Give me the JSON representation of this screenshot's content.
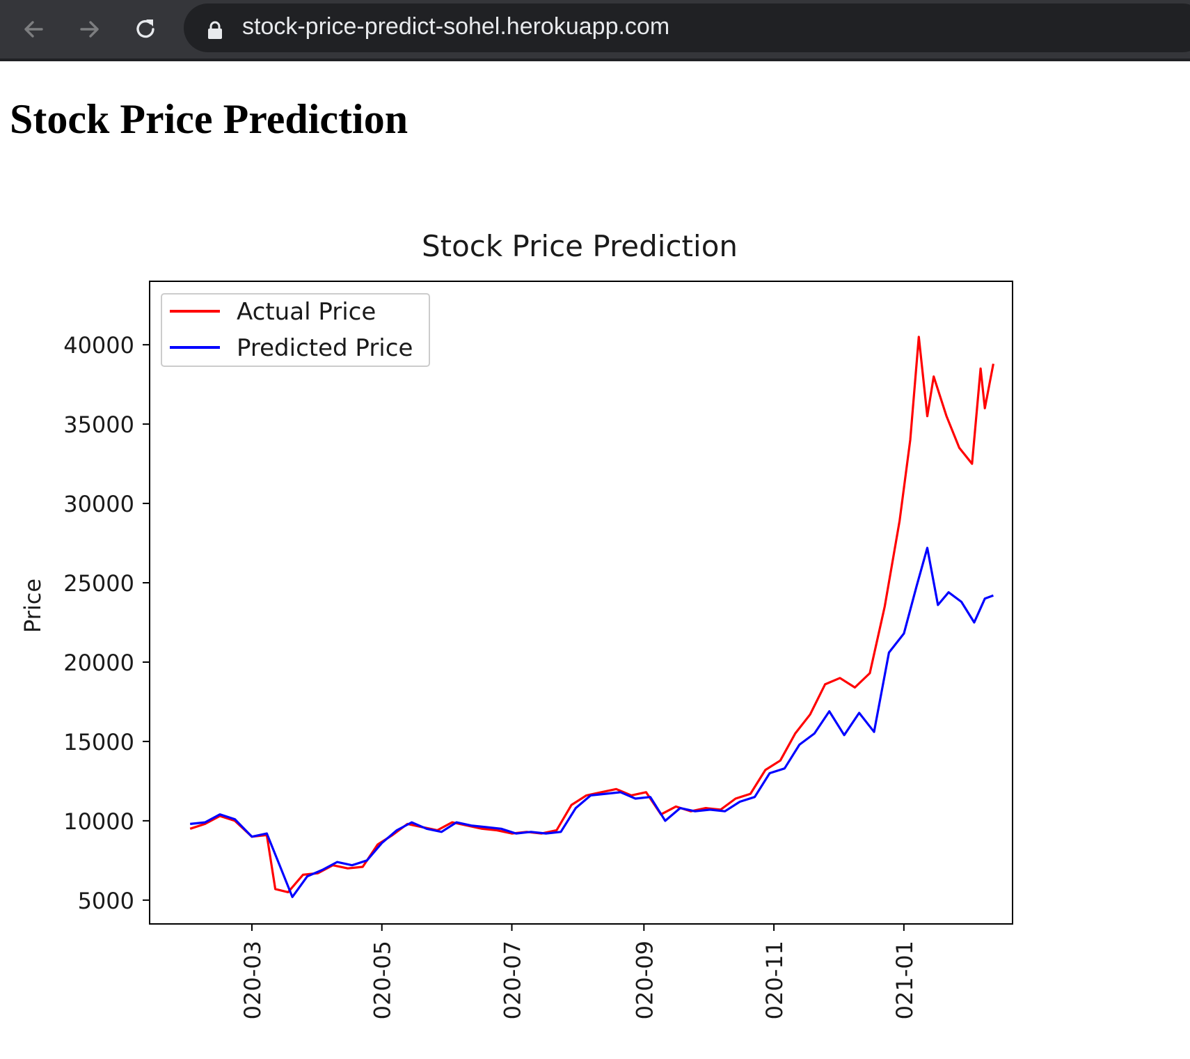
{
  "browser": {
    "url": "stock-price-predict-sohel.herokuapp.com",
    "icons": {
      "back": "arrow-left-icon",
      "forward": "arrow-right-icon",
      "reload": "reload-icon",
      "lock": "lock-icon"
    }
  },
  "page": {
    "heading": "Stock Price Prediction"
  },
  "chart_data": {
    "type": "line",
    "title": "Stock Price Prediction",
    "xlabel": "",
    "ylabel": "Price",
    "x_tick_labels": [
      "020-03",
      "020-05",
      "020-07",
      "020-09",
      "020-11",
      "021-01"
    ],
    "x_ticks": [
      "2020-03-01",
      "2020-05-01",
      "2020-07-01",
      "2020-09-01",
      "2020-11-01",
      "2021-01-01"
    ],
    "xlim": [
      "2020-01-13",
      "2021-02-21"
    ],
    "y_ticks": [
      5000,
      10000,
      15000,
      20000,
      25000,
      30000,
      35000,
      40000
    ],
    "ylim": [
      3500,
      44000
    ],
    "grid": false,
    "legend_position": "upper left",
    "series": [
      {
        "name": "Actual Price",
        "color": "#ff0000",
        "points": [
          [
            "2020-02-01",
            9500
          ],
          [
            "2020-02-08",
            9800
          ],
          [
            "2020-02-15",
            10300
          ],
          [
            "2020-02-22",
            10000
          ],
          [
            "2020-03-01",
            9000
          ],
          [
            "2020-03-08",
            9100
          ],
          [
            "2020-03-12",
            5700
          ],
          [
            "2020-03-18",
            5500
          ],
          [
            "2020-03-25",
            6600
          ],
          [
            "2020-04-01",
            6700
          ],
          [
            "2020-04-08",
            7200
          ],
          [
            "2020-04-15",
            7000
          ],
          [
            "2020-04-22",
            7100
          ],
          [
            "2020-04-29",
            8500
          ],
          [
            "2020-05-06",
            9100
          ],
          [
            "2020-05-13",
            9800
          ],
          [
            "2020-05-20",
            9600
          ],
          [
            "2020-05-27",
            9400
          ],
          [
            "2020-06-03",
            9900
          ],
          [
            "2020-06-10",
            9700
          ],
          [
            "2020-06-17",
            9500
          ],
          [
            "2020-06-24",
            9400
          ],
          [
            "2020-07-01",
            9200
          ],
          [
            "2020-07-08",
            9300
          ],
          [
            "2020-07-15",
            9200
          ],
          [
            "2020-07-22",
            9400
          ],
          [
            "2020-07-29",
            11000
          ],
          [
            "2020-08-05",
            11600
          ],
          [
            "2020-08-12",
            11800
          ],
          [
            "2020-08-19",
            12000
          ],
          [
            "2020-08-26",
            11600
          ],
          [
            "2020-09-02",
            11800
          ],
          [
            "2020-09-09",
            10400
          ],
          [
            "2020-09-16",
            10900
          ],
          [
            "2020-09-23",
            10600
          ],
          [
            "2020-09-30",
            10800
          ],
          [
            "2020-10-07",
            10700
          ],
          [
            "2020-10-14",
            11400
          ],
          [
            "2020-10-21",
            11700
          ],
          [
            "2020-10-28",
            13200
          ],
          [
            "2020-11-04",
            13800
          ],
          [
            "2020-11-11",
            15500
          ],
          [
            "2020-11-18",
            16700
          ],
          [
            "2020-11-25",
            18600
          ],
          [
            "2020-12-02",
            19000
          ],
          [
            "2020-12-09",
            18400
          ],
          [
            "2020-12-16",
            19300
          ],
          [
            "2020-12-23",
            23500
          ],
          [
            "2020-12-30",
            28900
          ],
          [
            "2021-01-04",
            34000
          ],
          [
            "2021-01-08",
            40500
          ],
          [
            "2021-01-12",
            35500
          ],
          [
            "2021-01-15",
            38000
          ],
          [
            "2021-01-21",
            35500
          ],
          [
            "2021-01-27",
            33500
          ],
          [
            "2021-02-02",
            32500
          ],
          [
            "2021-02-06",
            38500
          ],
          [
            "2021-02-08",
            36000
          ],
          [
            "2021-02-12",
            38800
          ]
        ]
      },
      {
        "name": "Predicted Price",
        "color": "#0000ff",
        "points": [
          [
            "2020-02-01",
            9800
          ],
          [
            "2020-02-08",
            9900
          ],
          [
            "2020-02-15",
            10400
          ],
          [
            "2020-02-22",
            10100
          ],
          [
            "2020-03-01",
            9000
          ],
          [
            "2020-03-08",
            9200
          ],
          [
            "2020-03-14",
            7200
          ],
          [
            "2020-03-20",
            5200
          ],
          [
            "2020-03-27",
            6500
          ],
          [
            "2020-04-03",
            6900
          ],
          [
            "2020-04-10",
            7400
          ],
          [
            "2020-04-17",
            7200
          ],
          [
            "2020-04-24",
            7500
          ],
          [
            "2020-05-01",
            8600
          ],
          [
            "2020-05-08",
            9400
          ],
          [
            "2020-05-15",
            9900
          ],
          [
            "2020-05-22",
            9500
          ],
          [
            "2020-05-29",
            9300
          ],
          [
            "2020-06-05",
            9900
          ],
          [
            "2020-06-12",
            9700
          ],
          [
            "2020-06-19",
            9600
          ],
          [
            "2020-06-26",
            9500
          ],
          [
            "2020-07-03",
            9200
          ],
          [
            "2020-07-10",
            9300
          ],
          [
            "2020-07-17",
            9200
          ],
          [
            "2020-07-24",
            9300
          ],
          [
            "2020-07-31",
            10800
          ],
          [
            "2020-08-07",
            11600
          ],
          [
            "2020-08-14",
            11700
          ],
          [
            "2020-08-21",
            11800
          ],
          [
            "2020-08-28",
            11400
          ],
          [
            "2020-09-04",
            11500
          ],
          [
            "2020-09-11",
            10000
          ],
          [
            "2020-09-18",
            10800
          ],
          [
            "2020-09-25",
            10600
          ],
          [
            "2020-10-02",
            10700
          ],
          [
            "2020-10-09",
            10600
          ],
          [
            "2020-10-16",
            11200
          ],
          [
            "2020-10-23",
            11500
          ],
          [
            "2020-10-30",
            13000
          ],
          [
            "2020-11-06",
            13300
          ],
          [
            "2020-11-13",
            14800
          ],
          [
            "2020-11-20",
            15500
          ],
          [
            "2020-11-27",
            16900
          ],
          [
            "2020-12-04",
            15400
          ],
          [
            "2020-12-11",
            16800
          ],
          [
            "2020-12-18",
            15600
          ],
          [
            "2020-12-25",
            20600
          ],
          [
            "2021-01-01",
            21800
          ],
          [
            "2021-01-07",
            24800
          ],
          [
            "2021-01-12",
            27200
          ],
          [
            "2021-01-17",
            23600
          ],
          [
            "2021-01-22",
            24400
          ],
          [
            "2021-01-28",
            23800
          ],
          [
            "2021-02-03",
            22500
          ],
          [
            "2021-02-08",
            24000
          ],
          [
            "2021-02-12",
            24200
          ]
        ]
      }
    ]
  }
}
